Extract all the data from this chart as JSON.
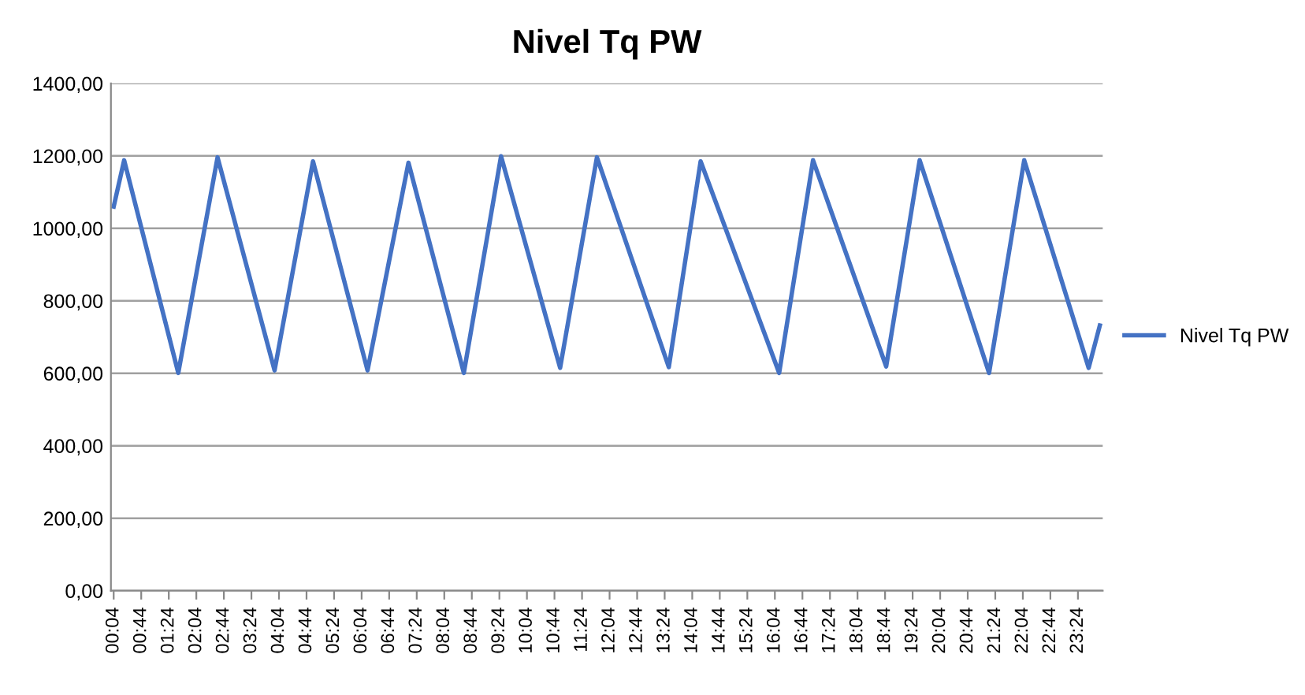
{
  "chart_data": {
    "type": "line",
    "title": "Nivel Tq PW",
    "series": [
      {
        "name": "Nivel Tq PW",
        "color": "#4472c4",
        "x": [
          0.067,
          0.32,
          1.63,
          2.58,
          3.96,
          4.89,
          6.21,
          7.2,
          8.54,
          9.44,
          10.87,
          11.76,
          13.5,
          14.27,
          16.17,
          16.99,
          18.76,
          19.57,
          21.25,
          22.1,
          23.66,
          23.93
        ],
        "values": [
          1060,
          1188,
          601,
          1196,
          608,
          1185,
          608,
          1181,
          601,
          1199,
          615,
          1196,
          617,
          1185,
          601,
          1188,
          619,
          1188,
          601,
          1188,
          615,
          732
        ]
      }
    ],
    "xlim": [
      0,
      24
    ],
    "xticks": [
      {
        "value": 0.0667,
        "label": "00:04"
      },
      {
        "value": 0.7333,
        "label": "00:44"
      },
      {
        "value": 1.4,
        "label": "01:24"
      },
      {
        "value": 2.0667,
        "label": "02:04"
      },
      {
        "value": 2.7333,
        "label": "02:44"
      },
      {
        "value": 3.4,
        "label": "03:24"
      },
      {
        "value": 4.0667,
        "label": "04:04"
      },
      {
        "value": 4.7333,
        "label": "04:44"
      },
      {
        "value": 5.4,
        "label": "05:24"
      },
      {
        "value": 6.0667,
        "label": "06:04"
      },
      {
        "value": 6.7333,
        "label": "06:44"
      },
      {
        "value": 7.4,
        "label": "07:24"
      },
      {
        "value": 8.0667,
        "label": "08:04"
      },
      {
        "value": 8.7333,
        "label": "08:44"
      },
      {
        "value": 9.4,
        "label": "09:24"
      },
      {
        "value": 10.0667,
        "label": "10:04"
      },
      {
        "value": 10.7333,
        "label": "10:44"
      },
      {
        "value": 11.4,
        "label": "11:24"
      },
      {
        "value": 12.0667,
        "label": "12:04"
      },
      {
        "value": 12.7333,
        "label": "12:44"
      },
      {
        "value": 13.4,
        "label": "13:24"
      },
      {
        "value": 14.0667,
        "label": "14:04"
      },
      {
        "value": 14.7333,
        "label": "14:44"
      },
      {
        "value": 15.4,
        "label": "15:24"
      },
      {
        "value": 16.0667,
        "label": "16:04"
      },
      {
        "value": 16.7333,
        "label": "16:44"
      },
      {
        "value": 17.4,
        "label": "17:24"
      },
      {
        "value": 18.0667,
        "label": "18:04"
      },
      {
        "value": 18.7333,
        "label": "18:44"
      },
      {
        "value": 19.4,
        "label": "19:24"
      },
      {
        "value": 20.0667,
        "label": "20:04"
      },
      {
        "value": 20.7333,
        "label": "20:44"
      },
      {
        "value": 21.4,
        "label": "21:24"
      },
      {
        "value": 22.0667,
        "label": "22:04"
      },
      {
        "value": 22.7333,
        "label": "22:44"
      },
      {
        "value": 23.4,
        "label": "23:24"
      }
    ],
    "ylim": [
      0,
      1400
    ],
    "yticks": [
      {
        "value": 0,
        "label": "0,00"
      },
      {
        "value": 200,
        "label": "200,00"
      },
      {
        "value": 400,
        "label": "400,00"
      },
      {
        "value": 600,
        "label": "600,00"
      },
      {
        "value": 800,
        "label": "800,00"
      },
      {
        "value": 1000,
        "label": "1000,00"
      },
      {
        "value": 1200,
        "label": "1200,00"
      },
      {
        "value": 1400,
        "label": "1400,00"
      }
    ],
    "grid": "y",
    "legend": "right",
    "marker": "none",
    "line_style": "solid"
  }
}
